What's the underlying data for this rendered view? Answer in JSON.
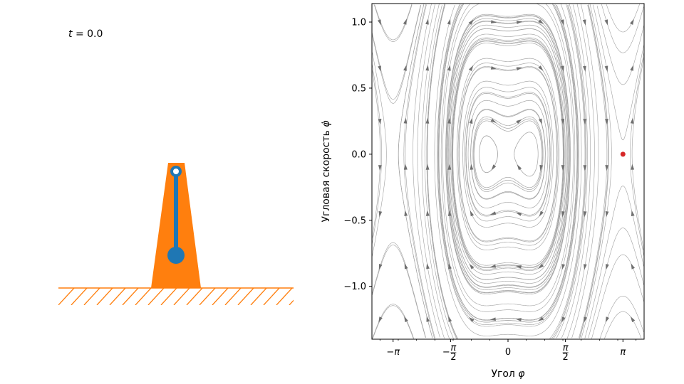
{
  "time_label": {
    "symbol": "t",
    "text": " = 0.0"
  },
  "colors": {
    "pendulum": "#1f77b4",
    "base": "#ff7f0e",
    "stream": "#a0a0a0",
    "arrow": "#707070",
    "state_point": "#d62728"
  },
  "chart_data": {
    "type": "streamplot",
    "xlabel_prefix": "Угол ",
    "xlabel_symbol": "φ",
    "ylabel_prefix": "Угловая скорость ",
    "ylabel_symbol": "φ̇",
    "xlim": [
      -3.72,
      3.72
    ],
    "ylim": [
      -1.4,
      1.14
    ],
    "xticks": [
      {
        "value": -3.14159,
        "label": "−π"
      },
      {
        "value": -1.5708,
        "label": "−π/2",
        "num": "π",
        "den": "2",
        "sign": "−"
      },
      {
        "value": 0,
        "label": "0"
      },
      {
        "value": 1.5708,
        "label": "π/2",
        "num": "π",
        "den": "2",
        "sign": ""
      },
      {
        "value": 3.14159,
        "label": "π"
      }
    ],
    "yticks": [
      {
        "value": 1.0,
        "label": "1.0"
      },
      {
        "value": 0.5,
        "label": "0.5"
      },
      {
        "value": 0.0,
        "label": "0.0"
      },
      {
        "value": -0.5,
        "label": "−0.5"
      },
      {
        "value": -1.0,
        "label": "−1.0"
      }
    ],
    "state_point": {
      "phi": 3.14159,
      "phi_dot": 0.0
    },
    "grid": false,
    "legend": "none"
  }
}
